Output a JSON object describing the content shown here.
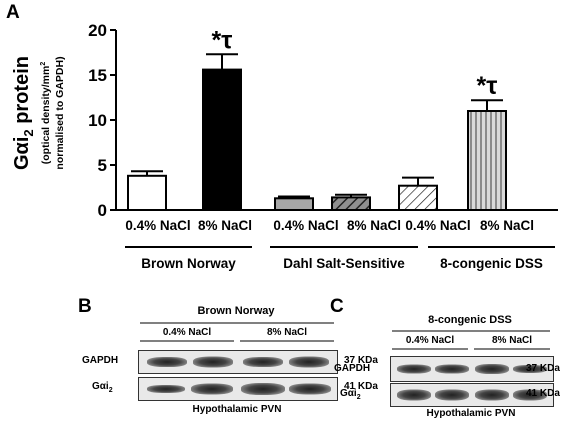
{
  "panel_labels": {
    "a": "A",
    "b": "B",
    "c": "C"
  },
  "chart_data": {
    "type": "bar",
    "ylabel_main": "Gαi",
    "ylabel_sub": "2",
    "ylabel_tail": " protein",
    "ylabel_line2": "(optical density/mm",
    "ylabel_line2_sup": "2",
    "ylabel_line3": "normalised to GAPDH)",
    "ylim": [
      0,
      20
    ],
    "yticks": [
      0,
      5,
      10,
      15,
      20
    ],
    "categories": [
      "0.4% NaCl",
      "8% NaCl",
      "0.4% NaCl",
      "8% NaCl",
      "0.4% NaCl",
      "8% NaCl"
    ],
    "values": [
      3.8,
      15.6,
      1.3,
      1.4,
      2.7,
      11.0
    ],
    "errors": [
      0.5,
      1.7,
      0.2,
      0.3,
      0.9,
      1.2
    ],
    "fills": [
      "white",
      "black",
      "#a6a6a6",
      "hatch-dark",
      "hatch-light",
      "vstripe"
    ],
    "annotations": [
      "",
      "*τ",
      "",
      "",
      "",
      "*τ"
    ],
    "groups": [
      {
        "label": "Brown Norway",
        "from": 0,
        "to": 1
      },
      {
        "label": "Dahl Salt-Sensitive",
        "from": 2,
        "to": 3
      },
      {
        "label": "8-congenic DSS",
        "from": 4,
        "to": 5
      }
    ]
  },
  "blot_b": {
    "title": "Brown Norway",
    "conditions": [
      "0.4% NaCl",
      "8% NaCl"
    ],
    "rows": [
      {
        "label": "GAPDH",
        "label_sub": "",
        "kda": "37 KDa"
      },
      {
        "label": "Gαi",
        "label_sub": "2",
        "kda": "41 KDa"
      }
    ],
    "footer": "Hypothalamic PVN"
  },
  "blot_c": {
    "title": "8-congenic DSS",
    "conditions": [
      "0.4% NaCl",
      "8% NaCl"
    ],
    "rows": [
      {
        "label": "GAPDH",
        "label_sub": "",
        "kda": "37 KDa"
      },
      {
        "label": "Gαi",
        "label_sub": "2",
        "kda": "41 KDa"
      }
    ],
    "footer": "Hypothalamic PVN"
  }
}
